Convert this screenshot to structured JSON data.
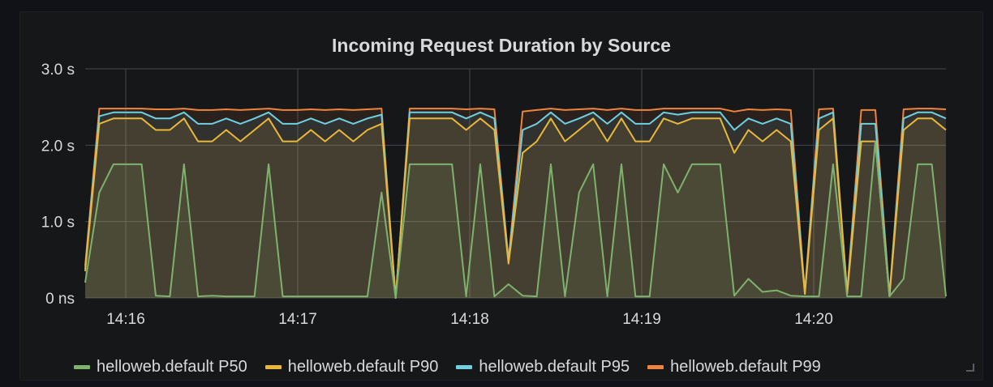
{
  "panel": {
    "title": "Incoming Request Duration by Source"
  },
  "chart_data": {
    "type": "line",
    "title": "Incoming Request Duration by Source",
    "y_unit": "s",
    "ylim": [
      0,
      3.0
    ],
    "y_ticks": [
      {
        "value": 0,
        "label": "0 ns"
      },
      {
        "value": 1.0,
        "label": "1.0 s"
      },
      {
        "value": 2.0,
        "label": "2.0 s"
      },
      {
        "value": 3.0,
        "label": "3.0 s"
      }
    ],
    "x_ticks": [
      "14:16",
      "14:17",
      "14:18",
      "14:19",
      "14:20"
    ],
    "grid": true,
    "legend_position": "bottom",
    "series": [
      {
        "name": "helloweb.default P50",
        "color": "#7eb26d",
        "values": [
          0.2,
          1.38,
          1.75,
          1.75,
          1.75,
          0.03,
          0.02,
          1.75,
          0.02,
          0.03,
          0.02,
          0.02,
          0.02,
          1.75,
          0.02,
          0.02,
          0.02,
          0.02,
          0.02,
          0.02,
          0.02,
          1.38,
          0,
          1.75,
          1.75,
          1.75,
          1.75,
          0.02,
          1.75,
          0.02,
          0.18,
          0.03,
          0.02,
          1.75,
          0.02,
          1.38,
          1.75,
          0.02,
          1.75,
          0.02,
          0.02,
          1.75,
          1.38,
          1.75,
          1.75,
          1.75,
          0.03,
          0.25,
          0.08,
          0.1,
          0.03,
          0.02,
          0.02,
          1.75,
          0.02,
          0.02,
          2.05,
          0.02,
          0.25,
          1.75,
          1.75,
          0.02
        ]
      },
      {
        "name": "helloweb.default P90",
        "color": "#eab839",
        "values": [
          0.35,
          2.28,
          2.35,
          2.35,
          2.35,
          2.2,
          2.2,
          2.35,
          2.05,
          2.05,
          2.2,
          2.05,
          2.2,
          2.35,
          2.05,
          2.05,
          2.2,
          2.05,
          2.2,
          2.05,
          2.2,
          2.28,
          0,
          2.35,
          2.35,
          2.35,
          2.35,
          2.2,
          2.35,
          2.2,
          0.45,
          1.9,
          2.05,
          2.35,
          2.05,
          2.2,
          2.35,
          2.05,
          2.35,
          2.05,
          2.05,
          2.35,
          2.28,
          2.35,
          2.35,
          2.35,
          1.9,
          2.2,
          2.05,
          2.2,
          2.05,
          0.05,
          2.2,
          2.35,
          0.05,
          2.05,
          2.05,
          0.02,
          2.2,
          2.35,
          2.35,
          2.2
        ]
      },
      {
        "name": "helloweb.default P95",
        "color": "#6ed0e0",
        "values": [
          0.38,
          2.38,
          2.43,
          2.43,
          2.43,
          2.35,
          2.35,
          2.43,
          2.28,
          2.28,
          2.35,
          2.28,
          2.35,
          2.43,
          2.28,
          2.28,
          2.35,
          2.28,
          2.35,
          2.28,
          2.35,
          2.4,
          0,
          2.43,
          2.43,
          2.43,
          2.43,
          2.35,
          2.43,
          2.35,
          0.48,
          2.2,
          2.28,
          2.43,
          2.28,
          2.35,
          2.43,
          2.28,
          2.43,
          2.28,
          2.28,
          2.43,
          2.4,
          2.43,
          2.43,
          2.43,
          2.2,
          2.35,
          2.28,
          2.35,
          2.28,
          0.06,
          2.35,
          2.43,
          0.06,
          2.28,
          2.28,
          0.03,
          2.35,
          2.43,
          2.43,
          2.35
        ]
      },
      {
        "name": "helloweb.default P99",
        "color": "#ef843c",
        "values": [
          0.42,
          2.48,
          2.48,
          2.48,
          2.48,
          2.47,
          2.47,
          2.48,
          2.46,
          2.46,
          2.47,
          2.46,
          2.47,
          2.48,
          2.46,
          2.46,
          2.47,
          2.46,
          2.47,
          2.46,
          2.47,
          2.48,
          0,
          2.48,
          2.48,
          2.48,
          2.48,
          2.47,
          2.48,
          2.47,
          0.5,
          2.44,
          2.46,
          2.48,
          2.46,
          2.47,
          2.48,
          2.46,
          2.48,
          2.46,
          2.46,
          2.48,
          2.48,
          2.48,
          2.48,
          2.48,
          2.44,
          2.47,
          2.46,
          2.47,
          2.46,
          0.08,
          2.47,
          2.48,
          0.08,
          2.46,
          2.46,
          0.04,
          2.47,
          2.48,
          2.48,
          2.47
        ]
      }
    ]
  }
}
